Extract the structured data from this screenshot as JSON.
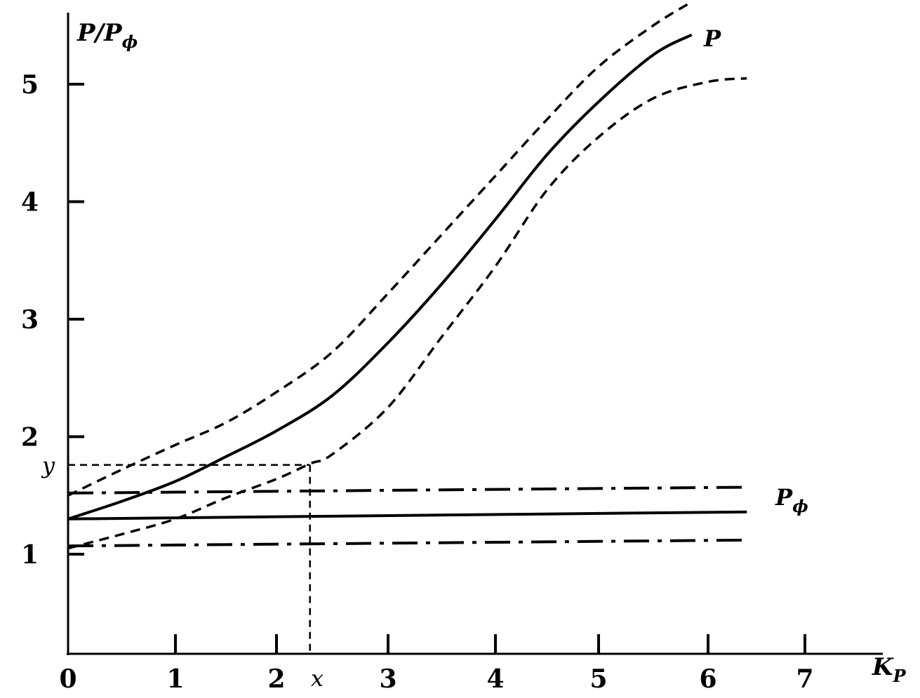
{
  "chart_data": {
    "type": "line",
    "xlabel": "K",
    "xlabel_sub": "P",
    "ylabel": "P/P",
    "ylabel_sub": "ϕ",
    "xlim": [
      0,
      7.5
    ],
    "ylim": [
      0,
      5.6
    ],
    "x_ticks": [
      0,
      1,
      2,
      3,
      4,
      5,
      6,
      7
    ],
    "x_tick_labels": [
      "0",
      "1",
      "2",
      "3",
      "4",
      "5",
      "6",
      "7"
    ],
    "y_ticks": [
      1,
      2,
      3,
      4,
      5
    ],
    "y_tick_labels": [
      "1",
      "2",
      "3",
      "4",
      "5"
    ],
    "grid": false,
    "legend": "none",
    "series": [
      {
        "id": "P",
        "name": "P",
        "style": "solid",
        "points": [
          [
            0,
            1.3
          ],
          [
            0.5,
            1.45
          ],
          [
            1,
            1.62
          ],
          [
            1.5,
            1.83
          ],
          [
            2,
            2.05
          ],
          [
            2.5,
            2.35
          ],
          [
            3,
            2.8
          ],
          [
            3.5,
            3.3
          ],
          [
            4,
            3.85
          ],
          [
            4.5,
            4.4
          ],
          [
            5,
            4.85
          ],
          [
            5.5,
            5.25
          ],
          [
            5.85,
            5.42
          ]
        ]
      },
      {
        "id": "P_upper",
        "style": "dashed",
        "points": [
          [
            0,
            1.5
          ],
          [
            0.5,
            1.72
          ],
          [
            1,
            1.93
          ],
          [
            1.5,
            2.12
          ],
          [
            2,
            2.38
          ],
          [
            2.5,
            2.72
          ],
          [
            3,
            3.22
          ],
          [
            3.5,
            3.72
          ],
          [
            4,
            4.22
          ],
          [
            4.5,
            4.7
          ],
          [
            5,
            5.15
          ],
          [
            5.5,
            5.5
          ],
          [
            5.85,
            5.7
          ]
        ]
      },
      {
        "id": "P_lower",
        "style": "dashed",
        "points": [
          [
            0,
            1.05
          ],
          [
            0.5,
            1.17
          ],
          [
            1,
            1.3
          ],
          [
            1.5,
            1.48
          ],
          [
            2,
            1.64
          ],
          [
            2.3,
            1.77
          ],
          [
            2.5,
            1.85
          ],
          [
            3,
            2.25
          ],
          [
            3.5,
            2.85
          ],
          [
            4,
            3.45
          ],
          [
            4.5,
            4.1
          ],
          [
            5,
            4.55
          ],
          [
            5.5,
            4.88
          ],
          [
            6,
            5.02
          ],
          [
            6.4,
            5.05
          ]
        ]
      },
      {
        "id": "P_phi",
        "name": "P",
        "name_sub": "ϕ",
        "style": "solid",
        "points": [
          [
            0,
            1.3
          ],
          [
            6.4,
            1.36
          ]
        ]
      },
      {
        "id": "P_phi_upper",
        "style": "dashdot",
        "points": [
          [
            0,
            1.52
          ],
          [
            6.4,
            1.57
          ]
        ]
      },
      {
        "id": "P_phi_lower",
        "style": "dashdot",
        "points": [
          [
            0,
            1.07
          ],
          [
            6.4,
            1.12
          ]
        ]
      }
    ],
    "annotations": {
      "x_mark": {
        "label": "x",
        "value": 2.3
      },
      "y_mark": {
        "label": "y",
        "value": 1.76
      }
    }
  }
}
